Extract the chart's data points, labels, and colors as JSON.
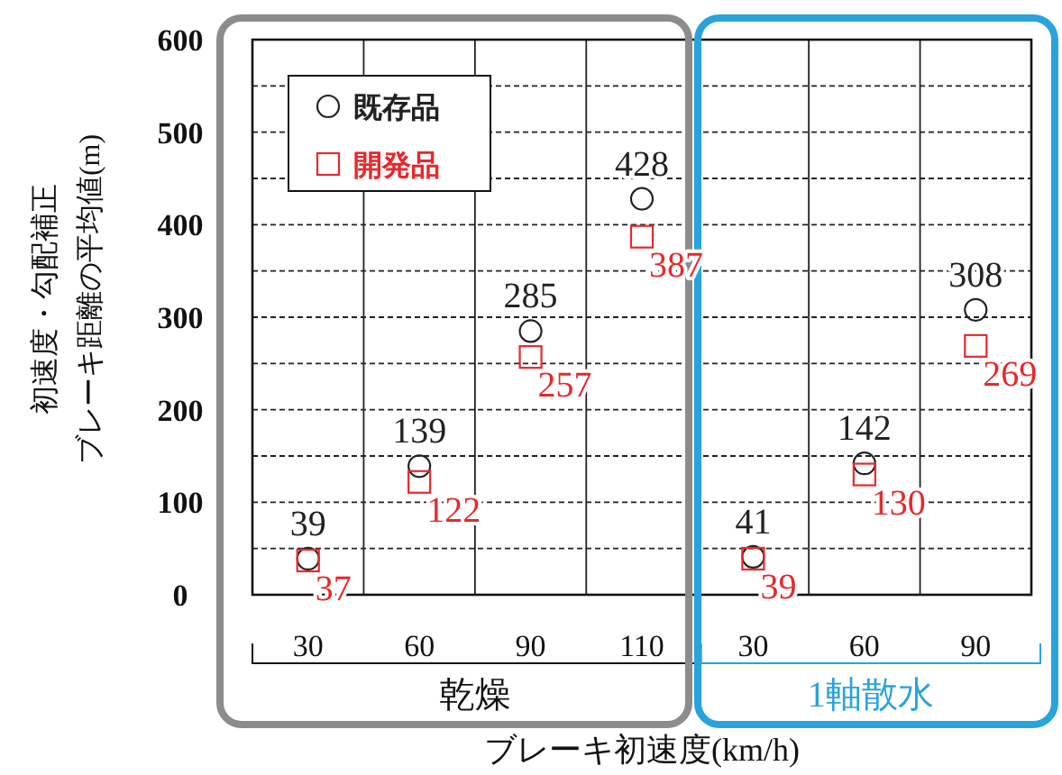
{
  "chart_data": {
    "type": "scatter",
    "categories": [
      "30",
      "60",
      "90",
      "110",
      "30",
      "60",
      "90"
    ],
    "series": [
      {
        "name": "既存品",
        "color": "#222222",
        "marker": "circle",
        "values": [
          39,
          139,
          285,
          428,
          41,
          142,
          308
        ]
      },
      {
        "name": "開発品",
        "color": "#e8282b",
        "marker": "square",
        "values": [
          37,
          122,
          257,
          387,
          39,
          130,
          269
        ]
      }
    ],
    "ylim": [
      0,
      600
    ],
    "yticks": [
      0,
      {
        "value": 50,
        "label": null
      },
      100,
      {
        "value": 150,
        "label": null
      },
      200,
      {
        "value": 250,
        "label": null
      },
      300,
      {
        "value": 350,
        "label": null
      },
      400,
      {
        "value": 450,
        "label": null
      },
      500,
      {
        "value": 550,
        "label": null
      },
      600
    ],
    "ylabel": "初速度・勾配補正ブレーキ距離の平均値(m)",
    "xlabel": "ブレーキ初速度(km/h)",
    "annotations": [
      "乾燥",
      "1軸散水"
    ],
    "data_labels": true,
    "grid": true,
    "legend": "top left"
  }
}
